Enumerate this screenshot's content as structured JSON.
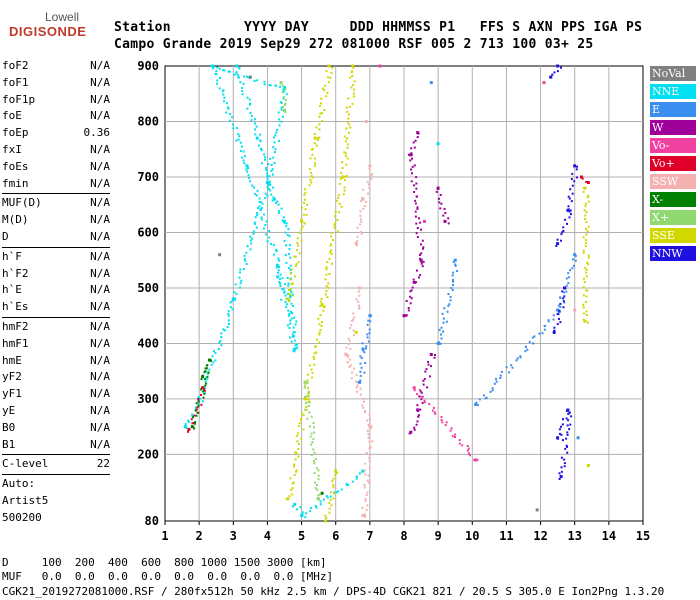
{
  "logo": {
    "top": "Lowell",
    "main": "DIGISONDE"
  },
  "header": {
    "line1": "Station         YYYY DAY     DDD HHMMSS P1   FFS S AXN PPS IGA PS",
    "line2": "Campo Grande 2019 Sep29 272 081000 RSF 005 2 713 100 03+ 25"
  },
  "params": [
    {
      "name": "foF2",
      "value": "N/A"
    },
    {
      "name": "foF1",
      "value": "N/A"
    },
    {
      "name": "foF1p",
      "value": "N/A"
    },
    {
      "name": "foE",
      "value": "N/A"
    },
    {
      "name": "foEp",
      "value": "0.36"
    },
    {
      "name": "fxI",
      "value": "N/A"
    },
    {
      "name": "foEs",
      "value": "N/A"
    },
    {
      "name": "fmin",
      "value": "N/A"
    },
    {
      "sep": true
    },
    {
      "name": "MUF(D)",
      "value": "N/A"
    },
    {
      "name": "M(D)",
      "value": "N/A"
    },
    {
      "name": "D",
      "value": "N/A"
    },
    {
      "sep": true
    },
    {
      "name": "h`F",
      "value": "N/A"
    },
    {
      "name": "h`F2",
      "value": "N/A"
    },
    {
      "name": "h`E",
      "value": "N/A"
    },
    {
      "name": "h`Es",
      "value": "N/A"
    },
    {
      "sep": true
    },
    {
      "name": "hmF2",
      "value": "N/A"
    },
    {
      "name": "hmF1",
      "value": "N/A"
    },
    {
      "name": "hmE",
      "value": "N/A"
    },
    {
      "name": "yF2",
      "value": "N/A"
    },
    {
      "name": "yF1",
      "value": "N/A"
    },
    {
      "name": "yE",
      "value": "N/A"
    },
    {
      "name": "B0",
      "value": "N/A"
    },
    {
      "name": "B1",
      "value": "N/A"
    },
    {
      "sep": true
    },
    {
      "name": "C-level",
      "value": "22"
    },
    {
      "sep": true
    },
    {
      "name": "Auto:",
      "value": ""
    },
    {
      "name": "Artist5",
      "value": ""
    },
    {
      "name": "500200",
      "value": ""
    }
  ],
  "legend": [
    {
      "label": "NoVal",
      "bg": "#808080",
      "fg": "#ffffff"
    },
    {
      "label": "NNE",
      "bg": "#00e0f0",
      "fg": "#ffffff"
    },
    {
      "label": "E",
      "bg": "#3a8ef0",
      "fg": "#ffffff"
    },
    {
      "label": "W",
      "bg": "#a0009a",
      "fg": "#ffffff"
    },
    {
      "label": "Vo-",
      "bg": "#f040a0",
      "fg": "#ffffff"
    },
    {
      "label": "Vo+",
      "bg": "#e0002a",
      "fg": "#ffffff"
    },
    {
      "label": "SSW",
      "bg": "#f5b0b0",
      "fg": "#ffffff"
    },
    {
      "label": "X-",
      "bg": "#008000",
      "fg": "#ffffff"
    },
    {
      "label": "X+",
      "bg": "#90d870",
      "fg": "#ffffff"
    },
    {
      "label": "SSE",
      "bg": "#d0d800",
      "fg": "#ffffff"
    },
    {
      "label": "NNW",
      "bg": "#2010e0",
      "fg": "#ffffff"
    }
  ],
  "footer": {
    "d_row": "D     100  200  400  600  800 1000 1500 3000 [km]",
    "muf_row": "MUF   0.0  0.0  0.0  0.0  0.0  0.0  0.0  0.0 [MHz]",
    "file_row": "CGK21_2019272081000.RSF / 280fx512h 50 kHz 2.5 km / DPS-4D CGK21 821 / 20.5 S 305.0 E Ion2Png 1.3.20"
  },
  "chart_data": {
    "type": "scatter",
    "xlabel": "",
    "ylabel": "",
    "xlim": [
      1,
      15
    ],
    "ylim": [
      80,
      900
    ],
    "xticks": [
      "1",
      "2",
      "3",
      "4",
      "5",
      "6",
      "7",
      "8",
      "9",
      "10",
      "11",
      "12",
      "13",
      "14",
      "15"
    ],
    "yticks": [
      "80",
      "200",
      "300",
      "400",
      "500",
      "600",
      "700",
      "800",
      "900"
    ],
    "grid": true,
    "legend_position": "right",
    "series": [
      {
        "name": "NNE",
        "color": "#00e0f0",
        "points": [
          [
            1.6,
            250
          ],
          [
            2.0,
            300
          ],
          [
            3.0,
            480
          ],
          [
            4.0,
            690
          ],
          [
            4.5,
            860
          ],
          [
            2.4,
            900
          ],
          [
            3.4,
            720
          ],
          [
            4.3,
            540
          ],
          [
            4.6,
            480
          ],
          [
            3.1,
            900
          ],
          [
            3.7,
            770
          ],
          [
            4.2,
            660
          ],
          [
            4.5,
            620
          ],
          [
            4.8,
            390
          ],
          [
            4.3,
            520
          ],
          [
            4.8,
            110
          ],
          [
            5.0,
            90
          ],
          [
            6.8,
            170
          ],
          [
            9.0,
            760
          ]
        ]
      },
      {
        "name": "SSE",
        "color": "#d0d800",
        "points": [
          [
            4.6,
            480
          ],
          [
            5.0,
            620
          ],
          [
            5.4,
            770
          ],
          [
            5.8,
            900
          ],
          [
            4.6,
            120
          ],
          [
            5.1,
            300
          ],
          [
            5.6,
            470
          ],
          [
            6.2,
            700
          ],
          [
            6.5,
            900
          ],
          [
            5.7,
            80
          ],
          [
            6.0,
            170
          ],
          [
            6.6,
            420
          ],
          [
            13.3,
            680
          ],
          [
            13.3,
            440
          ],
          [
            13.4,
            180
          ]
        ]
      },
      {
        "name": "SSW",
        "color": "#f5b0b0",
        "points": [
          [
            6.6,
            580
          ],
          [
            6.8,
            660
          ],
          [
            7.0,
            720
          ],
          [
            6.8,
            90
          ],
          [
            7.0,
            250
          ],
          [
            6.3,
            380
          ],
          [
            6.7,
            500
          ],
          [
            6.9,
            800
          ],
          [
            13.0,
            720
          ],
          [
            13.0,
            460
          ]
        ]
      },
      {
        "name": "W",
        "color": "#a0009a",
        "points": [
          [
            8.0,
            450
          ],
          [
            8.3,
            510
          ],
          [
            8.5,
            550
          ],
          [
            8.2,
            740
          ],
          [
            8.4,
            780
          ],
          [
            8.2,
            240
          ],
          [
            8.4,
            280
          ],
          [
            8.8,
            380
          ],
          [
            9.0,
            680
          ],
          [
            9.2,
            620
          ]
        ]
      },
      {
        "name": "E",
        "color": "#3a8ef0",
        "points": [
          [
            6.7,
            330
          ],
          [
            6.8,
            390
          ],
          [
            7.0,
            450
          ],
          [
            8.8,
            870
          ],
          [
            9.0,
            400
          ],
          [
            9.5,
            550
          ],
          [
            10.1,
            290
          ],
          [
            12.5,
            460
          ],
          [
            13.0,
            560
          ],
          [
            13.1,
            230
          ]
        ]
      },
      {
        "name": "NNW",
        "color": "#2010e0",
        "points": [
          [
            12.5,
            580
          ],
          [
            12.8,
            640
          ],
          [
            13.0,
            720
          ],
          [
            12.4,
            420
          ],
          [
            12.7,
            500
          ],
          [
            12.5,
            230
          ],
          [
            12.8,
            280
          ],
          [
            12.6,
            160
          ],
          [
            12.3,
            880
          ],
          [
            12.5,
            900
          ]
        ]
      },
      {
        "name": "Vo-",
        "color": "#f040a0",
        "points": [
          [
            7.3,
            900
          ],
          [
            8.3,
            320
          ],
          [
            10.1,
            190
          ],
          [
            12.1,
            870
          ],
          [
            8.6,
            620
          ]
        ]
      },
      {
        "name": "Vo+",
        "color": "#e0002a",
        "points": [
          [
            1.7,
            245
          ],
          [
            2.1,
            320
          ],
          [
            13.2,
            700
          ],
          [
            13.4,
            690
          ]
        ]
      },
      {
        "name": "X-",
        "color": "#008000",
        "points": [
          [
            1.8,
            250
          ],
          [
            2.3,
            370
          ],
          [
            2.1,
            340
          ],
          [
            5.6,
            130
          ]
        ]
      },
      {
        "name": "X+",
        "color": "#90d870",
        "points": [
          [
            4.4,
            870
          ],
          [
            4.5,
            820
          ],
          [
            5.1,
            330
          ],
          [
            5.5,
            120
          ]
        ]
      },
      {
        "name": "NoVal",
        "color": "#808080",
        "points": [
          [
            2.6,
            560
          ],
          [
            3.5,
            880
          ],
          [
            11.9,
            100
          ]
        ]
      }
    ]
  }
}
